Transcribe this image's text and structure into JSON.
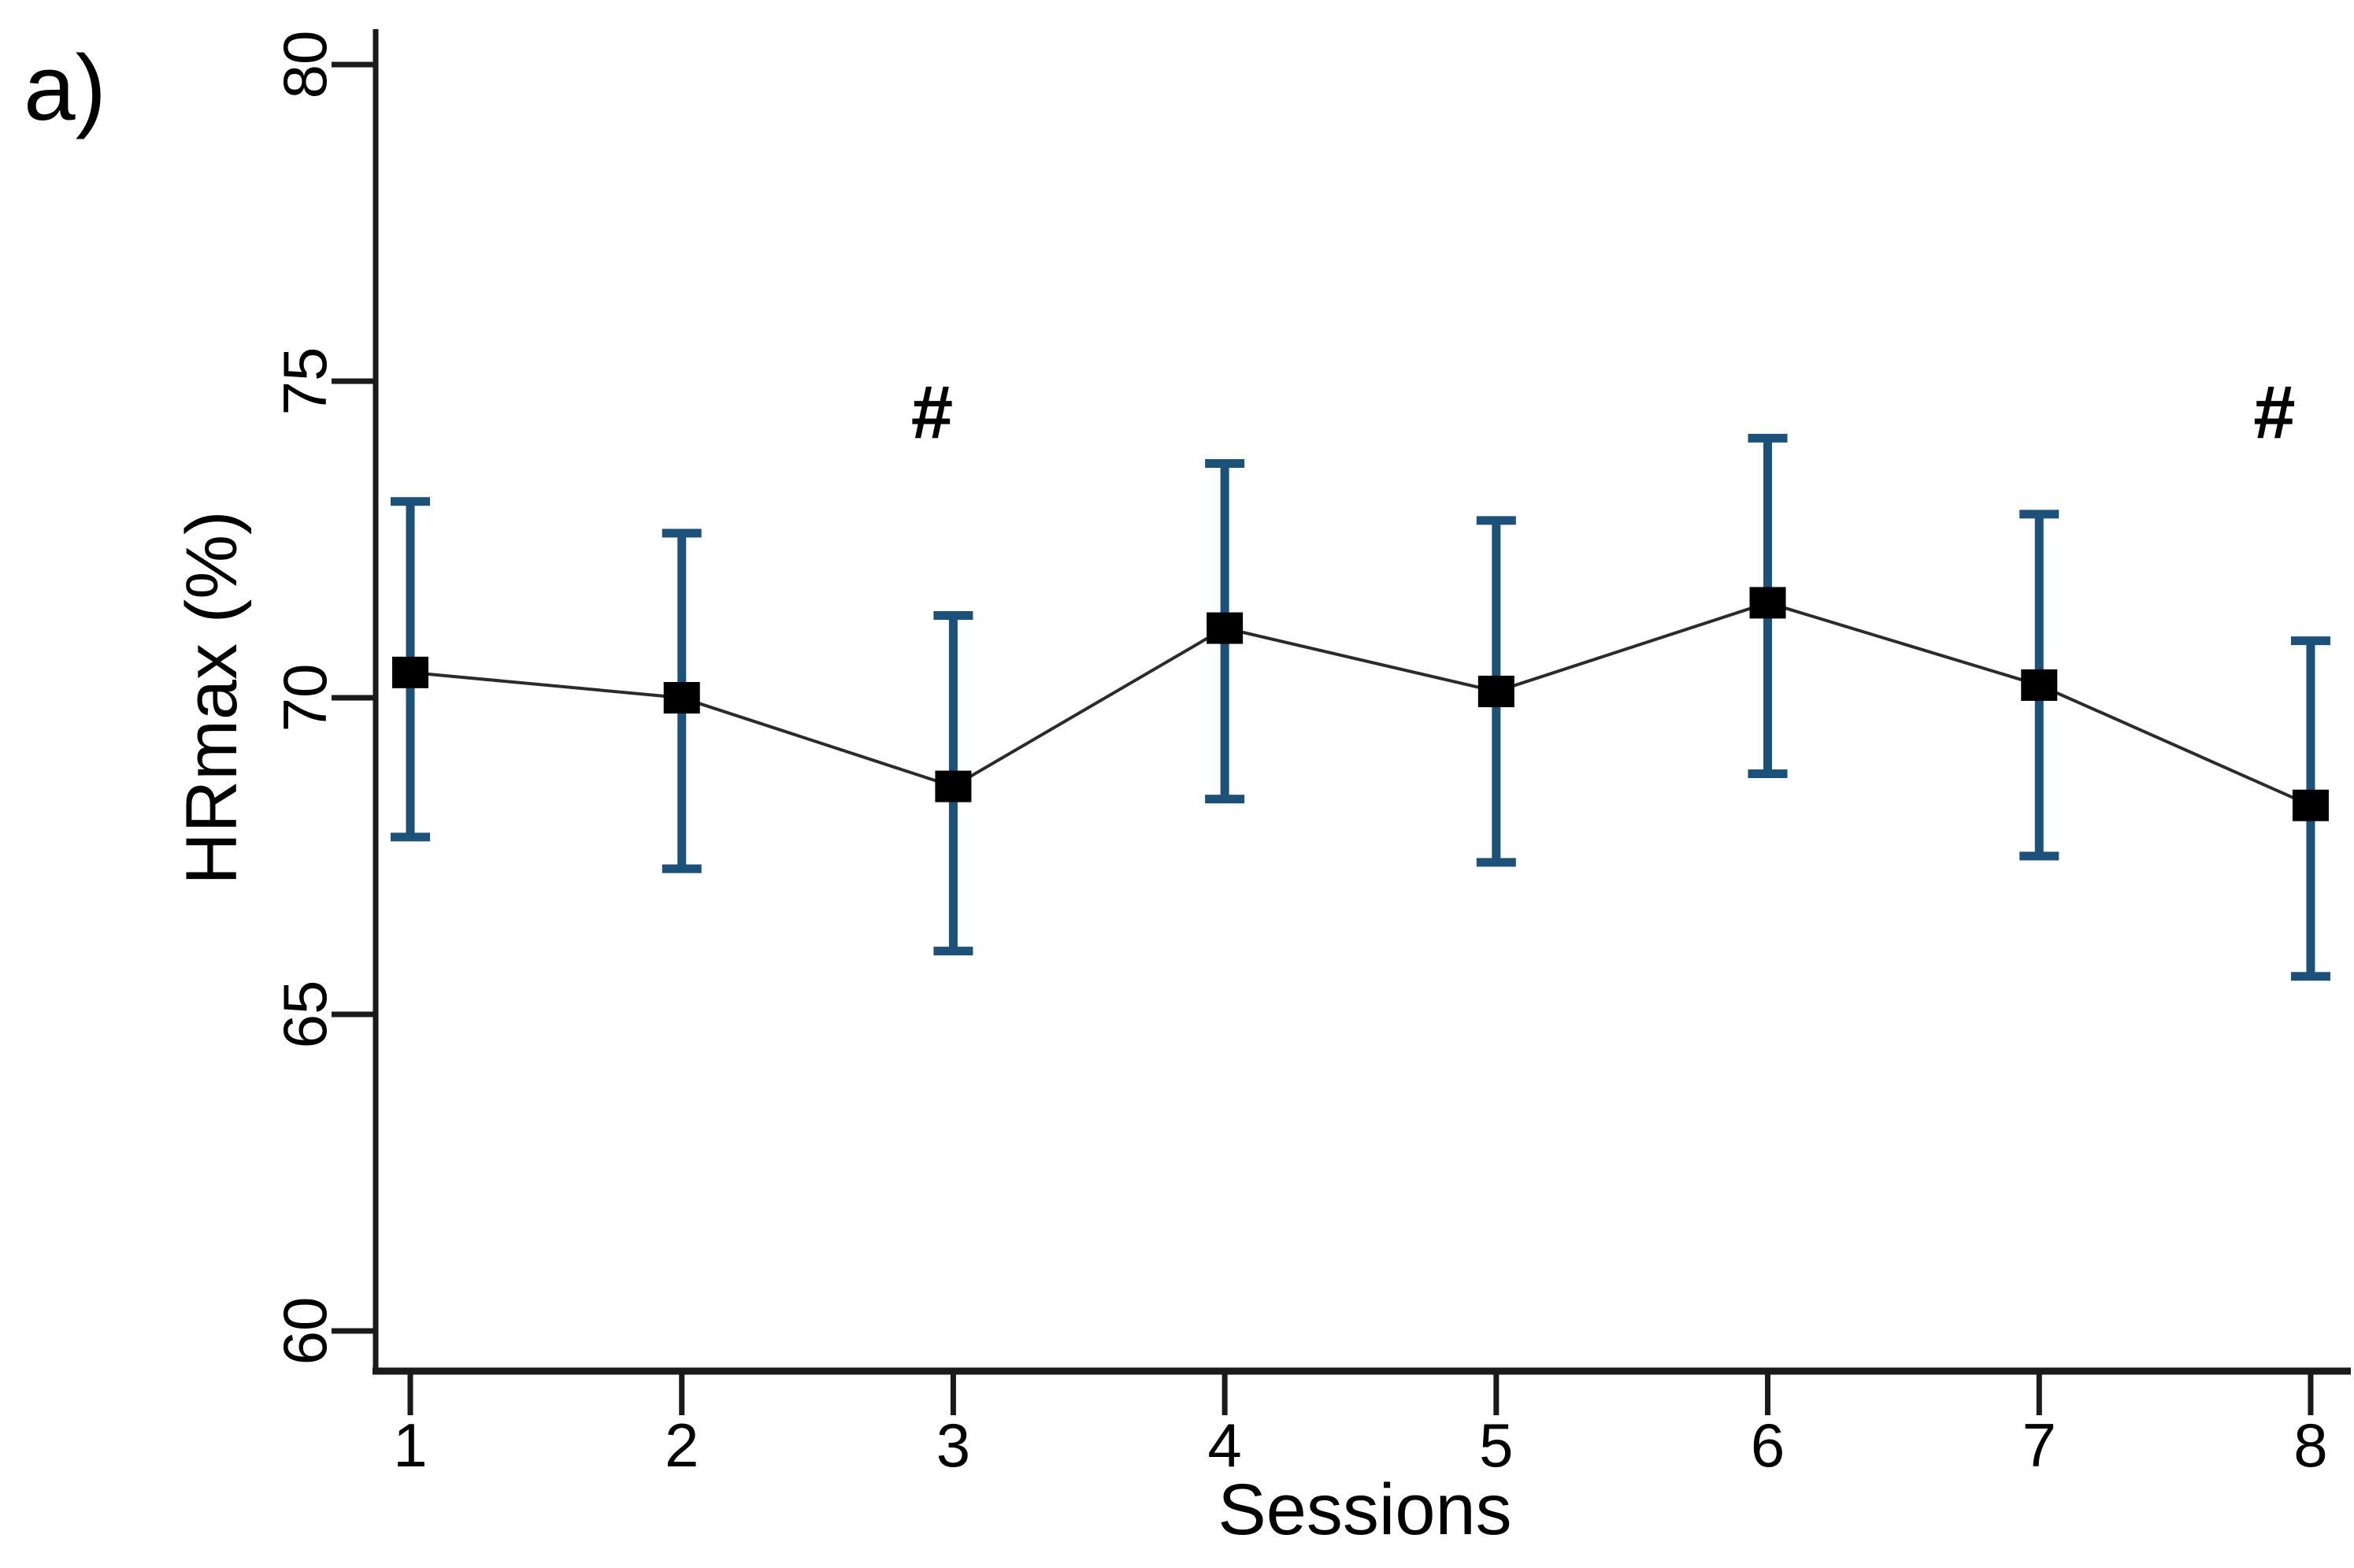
{
  "panel": {
    "label": "a)"
  },
  "chart_data": {
    "type": "line",
    "title": "",
    "xlabel": "Sessions",
    "ylabel": "HRmax (%)",
    "x": [
      1,
      2,
      3,
      4,
      5,
      6,
      7,
      8
    ],
    "xticks": [
      1,
      2,
      3,
      4,
      5,
      6,
      7,
      8
    ],
    "yticks": [
      60,
      65,
      70,
      75,
      80
    ],
    "xlim": [
      0.87,
      8.15
    ],
    "ylim": [
      59.4,
      80.6
    ],
    "grid": false,
    "legend": "none",
    "series": [
      {
        "name": "HRmax (%), mean with error bars",
        "marker": "square",
        "values": [
          70.4,
          70.0,
          68.6,
          71.1,
          70.1,
          71.5,
          70.2,
          68.3
        ],
        "err_low": [
          67.8,
          67.3,
          66.0,
          68.4,
          67.4,
          68.8,
          67.5,
          65.6
        ],
        "err_high": [
          73.1,
          72.6,
          71.3,
          73.7,
          72.8,
          74.1,
          72.9,
          70.9
        ]
      }
    ],
    "annotations": [
      {
        "text": "#",
        "x": 3,
        "y": 74.5,
        "dx": -27
      },
      {
        "text": "#",
        "x": 8,
        "y": 74.5,
        "dx": -46
      }
    ]
  },
  "colors": {
    "background": "#ffffff",
    "axis": "#1a1a1a",
    "text": "#000000",
    "error_bar": "#1c5179",
    "marker": "#000000",
    "trend_line": "#2b2b2b"
  }
}
